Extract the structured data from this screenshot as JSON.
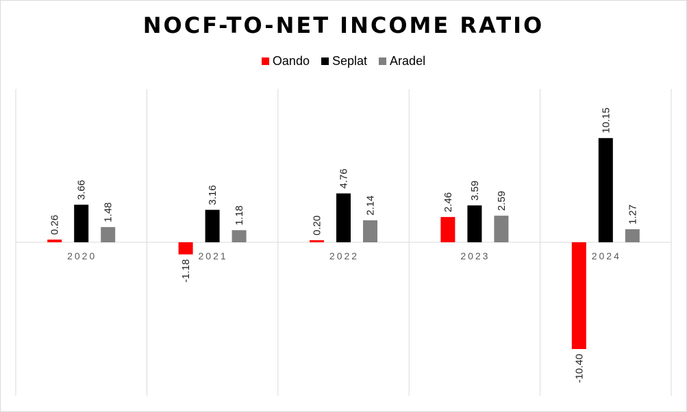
{
  "chart_data": {
    "type": "bar",
    "title": "NOCF-TO-NET INCOME RATIO",
    "categories": [
      "2020",
      "2021",
      "2022",
      "2023",
      "2024"
    ],
    "series": [
      {
        "name": "Oando",
        "color": "#ff0000",
        "values": [
          0.26,
          -1.18,
          0.2,
          2.46,
          -10.4
        ],
        "labels": [
          "0.26",
          "-1.18",
          "0.20",
          "2.46",
          "-10.40"
        ]
      },
      {
        "name": "Seplat",
        "color": "#000000",
        "values": [
          3.66,
          3.16,
          4.76,
          3.59,
          10.15
        ],
        "labels": [
          "3.66",
          "3.16",
          "4.76",
          "3.59",
          "10.15"
        ]
      },
      {
        "name": "Aradel",
        "color": "#808080",
        "values": [
          1.48,
          1.18,
          2.14,
          2.59,
          1.27
        ],
        "labels": [
          "1.48",
          "1.18",
          "2.14",
          "2.59",
          "1.27"
        ]
      }
    ],
    "legend_position": "top",
    "grid": "vertical category separators"
  }
}
